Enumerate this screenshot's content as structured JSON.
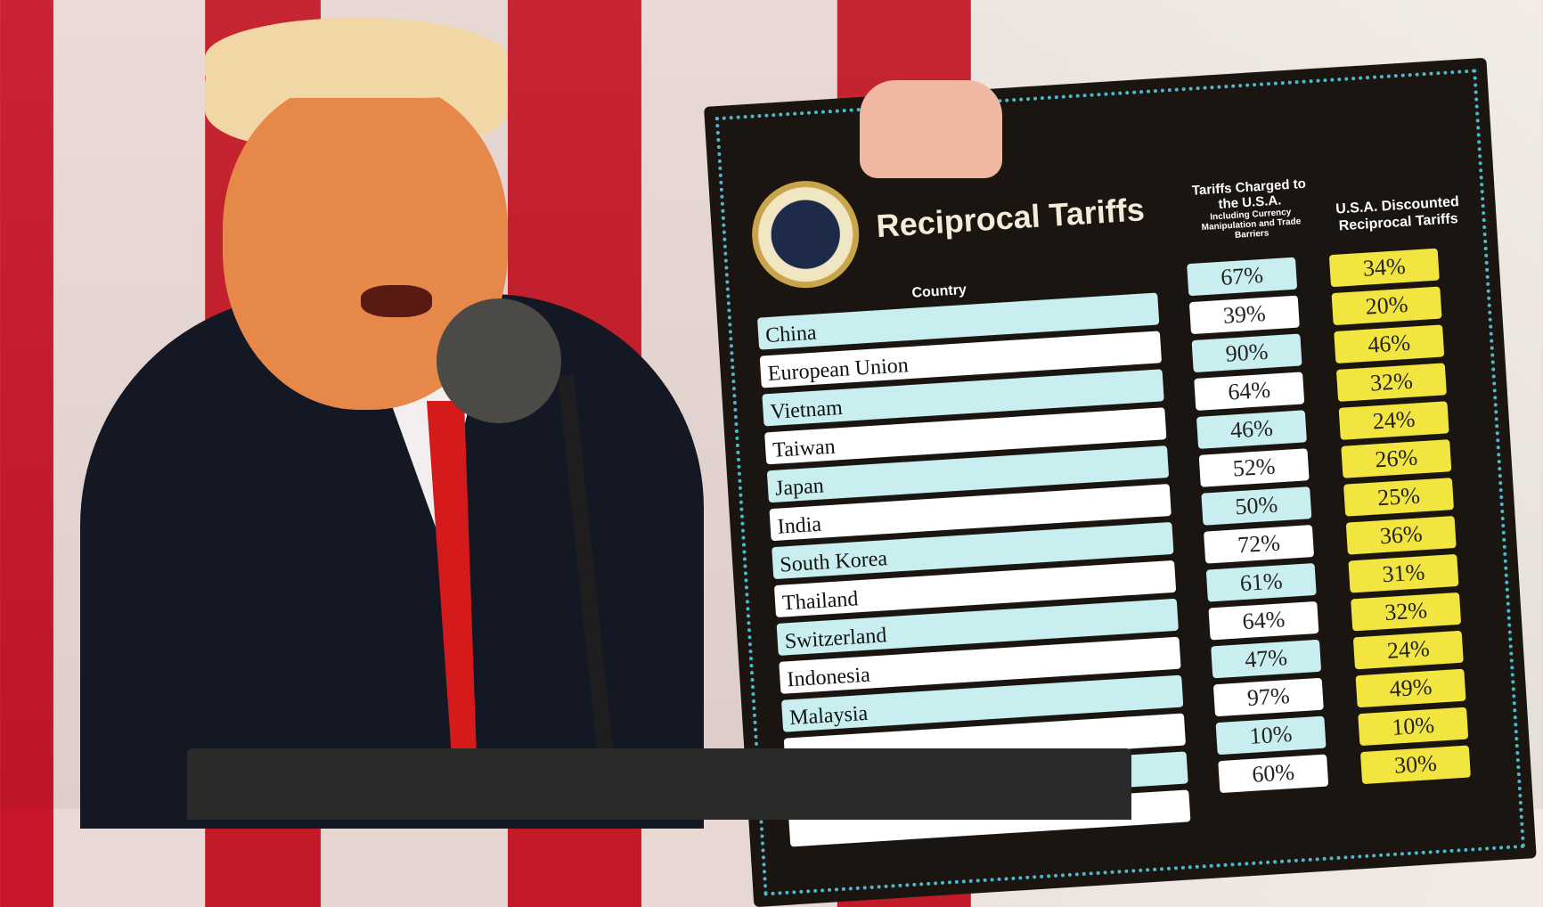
{
  "board": {
    "title": "Reciprocal Tariffs",
    "column_country": "Country",
    "column_charged": "Tariffs Charged to the U.S.A.",
    "column_charged_note": "Including Currency Manipulation and Trade Barriers",
    "column_discounted": "U.S.A. Discounted Reciprocal Tariffs",
    "seal": "Seal of the President of the United States",
    "colors": {
      "cyan": "#c9eef0",
      "white": "#ffffff",
      "yellow": "#f2e540",
      "board": "#1b1512"
    },
    "rows": [
      {
        "country": "China",
        "charged": "67%",
        "discounted": "34%"
      },
      {
        "country": "European Union",
        "charged": "39%",
        "discounted": "20%"
      },
      {
        "country": "Vietnam",
        "charged": "90%",
        "discounted": "46%"
      },
      {
        "country": "Taiwan",
        "charged": "64%",
        "discounted": "32%"
      },
      {
        "country": "Japan",
        "charged": "46%",
        "discounted": "24%"
      },
      {
        "country": "India",
        "charged": "52%",
        "discounted": "26%"
      },
      {
        "country": "South Korea",
        "charged": "50%",
        "discounted": "25%"
      },
      {
        "country": "Thailand",
        "charged": "72%",
        "discounted": "36%"
      },
      {
        "country": "Switzerland",
        "charged": "61%",
        "discounted": "31%"
      },
      {
        "country": "Indonesia",
        "charged": "64%",
        "discounted": "32%"
      },
      {
        "country": "Malaysia",
        "charged": "47%",
        "discounted": "24%"
      },
      {
        "country": "",
        "charged": "97%",
        "discounted": "49%"
      },
      {
        "country": "",
        "charged": "10%",
        "discounted": "10%"
      },
      {
        "country": "",
        "charged": "60%",
        "discounted": "30%"
      }
    ]
  }
}
